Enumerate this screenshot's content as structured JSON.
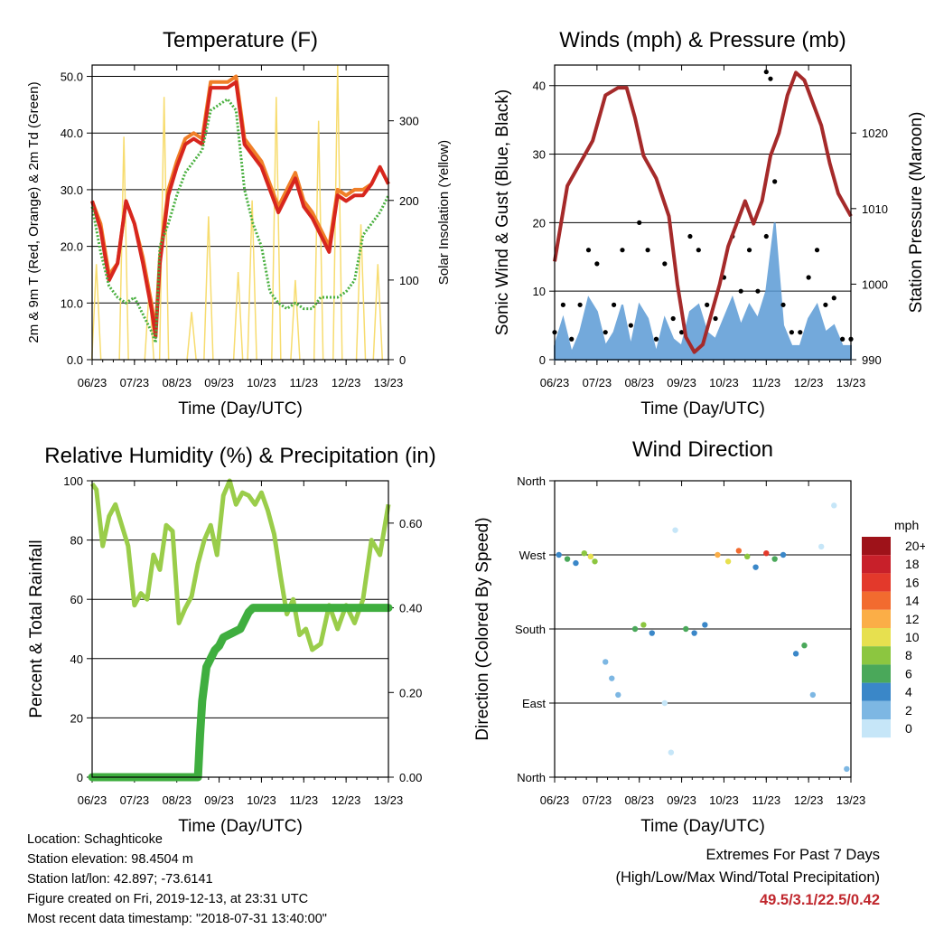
{
  "colors": {
    "temp2m": "#d7261e",
    "temp9m": "#f07f28",
    "dewpoint": "#4ab040",
    "solar": "#f7dc6f",
    "wind": "#5b9bd5",
    "gust": "#000000",
    "pressure": "#a52a2a",
    "rh": "#9acd4a",
    "precip": "#3fae3f",
    "highlight": "#c0272d"
  },
  "info": {
    "location": "Location: Schaghticoke",
    "elevation": "Station elevation: 98.4504 m",
    "latlon": "Station lat/lon: 42.897; -73.6141",
    "created": "Figure created on Fri, 2019-12-13, at 23:31 UTC",
    "recent": "Most recent data timestamp: \"2018-07-31 13:40:00\""
  },
  "extremes": {
    "title": "Extremes For Past 7 Days",
    "subtitle": "(High/Low/Max Wind/Total Precipitation)",
    "values": "49.5/3.1/22.5/0.42"
  },
  "chart_data": [
    {
      "type": "line",
      "title": "Temperature (F)",
      "xlabel": "Time (Day/UTC)",
      "ylabel": "2m & 9m T (Red, Orange) & 2m Td (Green)",
      "y2label": "Solar Insolation (Yellow)",
      "x_ticks": [
        "06/23",
        "07/23",
        "08/23",
        "09/23",
        "10/23",
        "11/23",
        "12/23",
        "13/23"
      ],
      "xlim": [
        6,
        13
      ],
      "ylim": [
        0,
        52
      ],
      "y_ticks": [
        "0.0",
        "10.0",
        "20.0",
        "30.0",
        "40.0",
        "50.0"
      ],
      "y2lim": [
        0,
        370
      ],
      "y2_ticks": [
        "0",
        "100",
        "200",
        "300"
      ],
      "grid": true,
      "series": [
        {
          "name": "2m T",
          "x": [
            6.0,
            6.2,
            6.4,
            6.6,
            6.8,
            7.0,
            7.2,
            7.4,
            7.5,
            7.6,
            7.8,
            8.0,
            8.2,
            8.4,
            8.6,
            8.8,
            9.0,
            9.2,
            9.4,
            9.6,
            9.8,
            10.0,
            10.2,
            10.4,
            10.6,
            10.8,
            11.0,
            11.2,
            11.4,
            11.6,
            11.8,
            12.0,
            12.2,
            12.4,
            12.6,
            12.8,
            13.0
          ],
          "y": [
            28,
            23,
            14,
            17,
            28,
            24,
            17,
            9,
            4,
            17,
            29,
            34,
            38,
            39,
            38,
            48,
            48,
            48,
            49,
            38,
            36,
            34,
            30,
            26,
            29,
            32,
            27,
            25,
            22,
            19,
            29,
            28,
            29,
            29,
            31,
            34,
            31
          ]
        },
        {
          "name": "9m T",
          "x": [
            6.0,
            6.2,
            6.4,
            6.6,
            6.8,
            7.0,
            7.2,
            7.4,
            7.5,
            7.6,
            7.8,
            8.0,
            8.2,
            8.4,
            8.6,
            8.8,
            9.0,
            9.2,
            9.4,
            9.6,
            9.8,
            10.0,
            10.2,
            10.4,
            10.6,
            10.8,
            11.0,
            11.2,
            11.4,
            11.6,
            11.8,
            12.0,
            12.2,
            12.4,
            12.6,
            12.8,
            13.0
          ],
          "y": [
            28,
            24,
            15,
            17,
            28,
            24,
            18,
            10,
            5,
            18,
            30,
            35,
            39,
            40,
            39,
            49,
            49,
            49,
            50,
            39,
            37,
            35,
            31,
            27,
            30,
            33,
            28,
            26,
            23,
            20,
            30,
            29,
            30,
            30,
            31,
            34,
            31
          ]
        },
        {
          "name": "2m Td",
          "x": [
            6.0,
            6.2,
            6.4,
            6.6,
            6.8,
            7.0,
            7.2,
            7.4,
            7.5,
            7.6,
            7.8,
            8.0,
            8.2,
            8.4,
            8.6,
            8.8,
            9.0,
            9.2,
            9.4,
            9.6,
            9.8,
            10.0,
            10.2,
            10.4,
            10.6,
            10.8,
            11.0,
            11.2,
            11.4,
            11.6,
            11.8,
            12.0,
            12.2,
            12.4,
            12.6,
            12.8,
            13.0
          ],
          "y": [
            27,
            19,
            13,
            11,
            10,
            11,
            8,
            5,
            3,
            20,
            24,
            29,
            33,
            35,
            37,
            44,
            45,
            46,
            44,
            30,
            24,
            20,
            12,
            10,
            9,
            10,
            9,
            9,
            11,
            11,
            11,
            12,
            14,
            22,
            24,
            26,
            29
          ]
        },
        {
          "name": "Solar Insolation",
          "axis": "y2",
          "x": [
            6.1,
            6.75,
            7.35,
            7.7,
            8.35,
            8.75,
            9.45,
            9.78,
            10.35,
            10.8,
            11.35,
            11.8,
            12.35,
            12.75
          ],
          "y": [
            120,
            280,
            90,
            330,
            60,
            180,
            110,
            200,
            330,
            100,
            300,
            370,
            170,
            120
          ]
        }
      ]
    },
    {
      "type": "scatter",
      "title": "Winds (mph) & Pressure (mb)",
      "xlabel": "Time (Day/UTC)",
      "ylabel": "Sonic Wind & Gust (Blue, Black)",
      "y2label": "Station Pressure (Maroon)",
      "x_ticks": [
        "06/23",
        "07/23",
        "08/23",
        "09/23",
        "10/23",
        "11/23",
        "12/23",
        "13/23"
      ],
      "xlim": [
        6,
        13
      ],
      "ylim": [
        0,
        43
      ],
      "y_ticks": [
        "0",
        "10",
        "20",
        "30",
        "40"
      ],
      "y2lim": [
        990,
        1029
      ],
      "y2_ticks": [
        "990",
        "1000",
        "1010",
        "1020"
      ],
      "grid": true,
      "series": [
        {
          "name": "Gust",
          "x": [
            6.0,
            6.2,
            6.4,
            6.6,
            6.8,
            7.0,
            7.2,
            7.4,
            7.6,
            7.8,
            8.0,
            8.2,
            8.4,
            8.6,
            8.8,
            9.0,
            9.2,
            9.4,
            9.6,
            9.8,
            10.0,
            10.2,
            10.4,
            10.6,
            10.8,
            11.0,
            11.2,
            11.4,
            11.6,
            11.8,
            12.0,
            12.2,
            12.4,
            12.6,
            12.8,
            13.0
          ],
          "y": [
            4,
            8,
            3,
            8,
            16,
            14,
            4,
            8,
            16,
            5,
            20,
            16,
            3,
            14,
            6,
            4,
            18,
            16,
            8,
            6,
            12,
            18,
            10,
            16,
            10,
            18,
            26,
            8,
            4,
            4,
            12,
            16,
            8,
            9,
            3,
            3
          ]
        },
        {
          "name": "Sonic Wind",
          "x": [
            6.0,
            6.2,
            6.4,
            6.6,
            6.8,
            7.0,
            7.2,
            7.4,
            7.6,
            7.8,
            8.0,
            8.2,
            8.4,
            8.6,
            8.8,
            9.0,
            9.2,
            9.4,
            9.6,
            9.8,
            10.0,
            10.2,
            10.4,
            10.6,
            10.8,
            11.0,
            11.2,
            11.4,
            11.6,
            11.8,
            12.0,
            12.2,
            12.4,
            12.6,
            12.8,
            13.0
          ],
          "y": [
            2,
            6,
            1,
            4,
            9,
            7,
            2,
            4,
            8,
            2,
            8,
            6,
            1,
            6,
            3,
            2,
            7,
            8,
            4,
            3,
            6,
            9,
            5,
            8,
            6,
            10,
            20,
            5,
            2,
            2,
            6,
            8,
            4,
            5,
            2,
            2
          ]
        },
        {
          "name": "Station Pressure",
          "axis": "y2",
          "x": [
            6.0,
            6.3,
            6.6,
            6.9,
            7.2,
            7.5,
            7.7,
            7.9,
            8.1,
            8.4,
            8.7,
            8.9,
            9.1,
            9.3,
            9.5,
            9.7,
            9.9,
            10.1,
            10.3,
            10.5,
            10.7,
            10.9,
            11.1,
            11.3,
            11.5,
            11.7,
            11.9,
            12.1,
            12.3,
            12.5,
            12.7,
            13.0
          ],
          "y": [
            1003,
            1013,
            1016,
            1019,
            1025,
            1026,
            1026,
            1022,
            1017,
            1014,
            1009,
            1000,
            993,
            991,
            992,
            996,
            1000,
            1005,
            1008,
            1011,
            1008,
            1011,
            1017,
            1020,
            1025,
            1028,
            1027,
            1024,
            1021,
            1016,
            1012,
            1009
          ]
        }
      ],
      "outlier_gusts": [
        {
          "x": 11.1,
          "y": 41
        },
        {
          "x": 11.0,
          "y": 42
        }
      ]
    },
    {
      "type": "line",
      "title": "Relative Humidity (%) & Precipitation (in)",
      "xlabel": "Time (Day/UTC)",
      "ylabel": "Percent & Total Rainfall",
      "x_ticks": [
        "06/23",
        "07/23",
        "08/23",
        "09/23",
        "10/23",
        "11/23",
        "12/23",
        "13/23"
      ],
      "xlim": [
        6,
        13
      ],
      "ylim": [
        0,
        100
      ],
      "y_ticks": [
        "0",
        "20",
        "40",
        "60",
        "80",
        "100"
      ],
      "y2lim": [
        0,
        0.7
      ],
      "y2_ticks": [
        "0.00",
        "0.20",
        "0.40",
        "0.60"
      ],
      "grid": true,
      "series": [
        {
          "name": "Relative Humidity",
          "x": [
            6.0,
            6.1,
            6.25,
            6.4,
            6.55,
            6.7,
            6.85,
            7.0,
            7.15,
            7.3,
            7.45,
            7.6,
            7.75,
            7.9,
            8.05,
            8.2,
            8.35,
            8.5,
            8.65,
            8.8,
            8.95,
            9.1,
            9.25,
            9.4,
            9.55,
            9.7,
            9.85,
            10.0,
            10.15,
            10.3,
            10.45,
            10.6,
            10.75,
            10.9,
            11.05,
            11.2,
            11.4,
            11.6,
            11.8,
            12.0,
            12.2,
            12.4,
            12.6,
            12.8,
            13.0
          ],
          "y": [
            99,
            97,
            78,
            88,
            92,
            85,
            78,
            58,
            62,
            60,
            75,
            70,
            85,
            83,
            52,
            57,
            61,
            72,
            80,
            85,
            75,
            95,
            100,
            92,
            96,
            95,
            92,
            96,
            90,
            82,
            68,
            55,
            60,
            48,
            50,
            43,
            45,
            58,
            50,
            58,
            52,
            60,
            80,
            75,
            92
          ]
        },
        {
          "name": "Total Precipitation",
          "axis": "y2",
          "x": [
            6.0,
            8.5,
            8.55,
            8.6,
            8.65,
            8.7,
            8.8,
            8.9,
            9.0,
            9.1,
            9.3,
            9.5,
            9.6,
            9.7,
            9.8,
            10.0,
            13.0
          ],
          "y": [
            0.0,
            0.0,
            0.1,
            0.18,
            0.22,
            0.26,
            0.28,
            0.3,
            0.31,
            0.33,
            0.34,
            0.35,
            0.37,
            0.39,
            0.4,
            0.4,
            0.4
          ]
        }
      ]
    },
    {
      "type": "scatter",
      "title": "Wind Direction",
      "xlabel": "Time (Day/UTC)",
      "ylabel": "Direction (Colored By Speed)",
      "x_ticks": [
        "06/23",
        "07/23",
        "08/23",
        "09/23",
        "10/23",
        "11/23",
        "12/23",
        "13/23"
      ],
      "xlim": [
        6,
        13
      ],
      "y_ticks": [
        "North",
        "East",
        "South",
        "West",
        "North"
      ],
      "ylim": [
        0,
        360
      ],
      "grid": true,
      "legend_title": "mph",
      "legend_labels": [
        "20+",
        "18",
        "16",
        "14",
        "12",
        "10",
        "8",
        "6",
        "4",
        "2",
        "0"
      ],
      "legend_colors": [
        "#9e1219",
        "#c8202a",
        "#e3392b",
        "#f26b2f",
        "#fbae47",
        "#e7e04f",
        "#8cc640",
        "#4aa85a",
        "#3a87c8",
        "#7db7e3",
        "#c6e6f8"
      ],
      "legend_placement": "right",
      "points": [
        {
          "x": 6.1,
          "y": 270,
          "s": 4
        },
        {
          "x": 6.3,
          "y": 265,
          "s": 6
        },
        {
          "x": 6.5,
          "y": 260,
          "s": 4
        },
        {
          "x": 6.7,
          "y": 272,
          "s": 8
        },
        {
          "x": 6.85,
          "y": 268,
          "s": 10
        },
        {
          "x": 6.95,
          "y": 262,
          "s": 8
        },
        {
          "x": 7.2,
          "y": 140,
          "s": 2
        },
        {
          "x": 7.35,
          "y": 120,
          "s": 2
        },
        {
          "x": 7.5,
          "y": 100,
          "s": 2
        },
        {
          "x": 7.9,
          "y": 180,
          "s": 6
        },
        {
          "x": 8.1,
          "y": 185,
          "s": 8
        },
        {
          "x": 8.3,
          "y": 175,
          "s": 4
        },
        {
          "x": 8.6,
          "y": 90,
          "s": 0
        },
        {
          "x": 8.75,
          "y": 30,
          "s": 0
        },
        {
          "x": 8.85,
          "y": 300,
          "s": 0
        },
        {
          "x": 9.1,
          "y": 180,
          "s": 6
        },
        {
          "x": 9.3,
          "y": 175,
          "s": 4
        },
        {
          "x": 9.55,
          "y": 185,
          "s": 4
        },
        {
          "x": 9.85,
          "y": 270,
          "s": 12
        },
        {
          "x": 10.1,
          "y": 262,
          "s": 10
        },
        {
          "x": 10.35,
          "y": 275,
          "s": 14
        },
        {
          "x": 10.55,
          "y": 268,
          "s": 8
        },
        {
          "x": 10.75,
          "y": 255,
          "s": 4
        },
        {
          "x": 11.0,
          "y": 272,
          "s": 16
        },
        {
          "x": 11.2,
          "y": 265,
          "s": 6
        },
        {
          "x": 11.4,
          "y": 270,
          "s": 4
        },
        {
          "x": 11.7,
          "y": 150,
          "s": 4
        },
        {
          "x": 11.9,
          "y": 160,
          "s": 6
        },
        {
          "x": 12.1,
          "y": 100,
          "s": 2
        },
        {
          "x": 12.3,
          "y": 280,
          "s": 0
        },
        {
          "x": 12.6,
          "y": 330,
          "s": 0
        },
        {
          "x": 12.9,
          "y": 10,
          "s": 2
        }
      ]
    }
  ]
}
